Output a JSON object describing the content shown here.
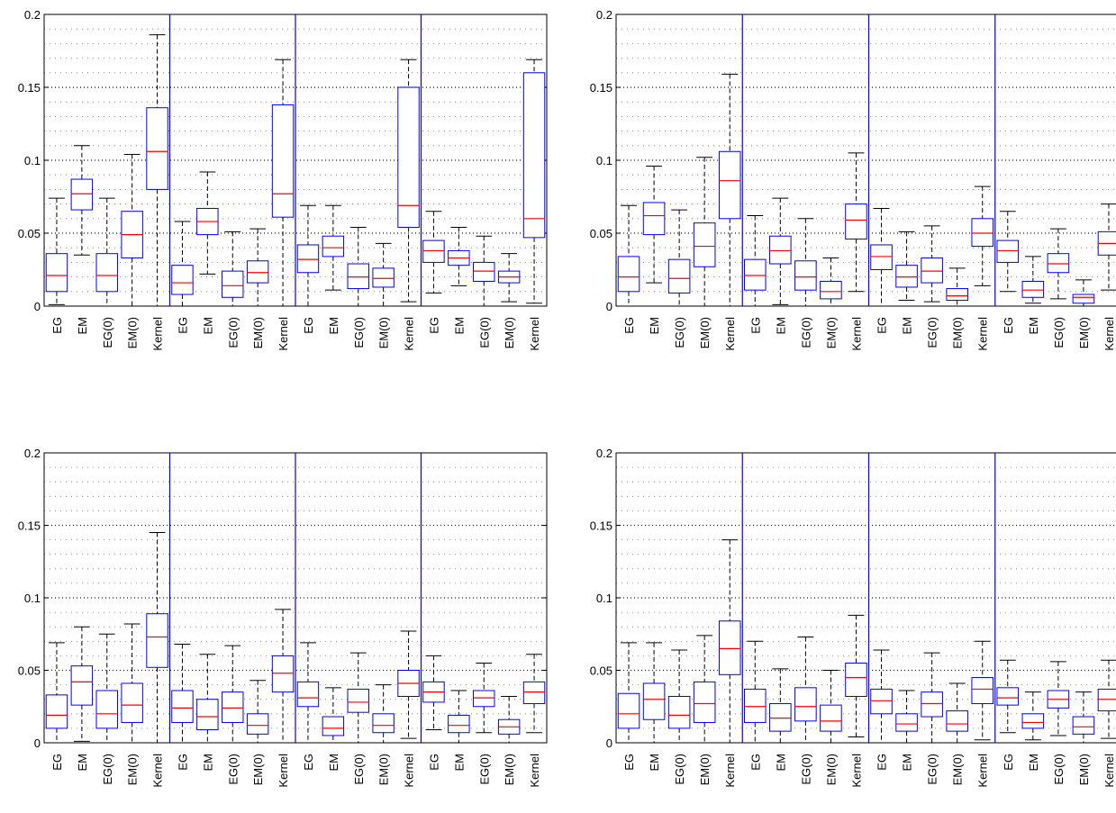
{
  "figure": {
    "layout": "2x2 grid of box plots"
  },
  "colors": {
    "box": "#0000ff",
    "median": "#ff0000",
    "whisker": "#000000",
    "grid": "#000000",
    "separator": "#0000ff"
  },
  "chart_data": [
    {
      "type": "box",
      "ylim": [
        0,
        0.2
      ],
      "yticks": [
        0,
        0.05,
        0.1,
        0.15,
        0.2
      ],
      "ytick_labels": [
        "0",
        "0.05",
        "0.1",
        "0.15",
        "0.2"
      ],
      "grid": "dotted",
      "groups": [
        {
          "categories": [
            "EG",
            "EM",
            "EG(0)",
            "EM(0)",
            "Kernel"
          ],
          "boxes": [
            [
              0.001,
              0.01,
              0.021,
              0.036,
              0.074
            ],
            [
              0.035,
              0.066,
              0.077,
              0.087,
              0.11
            ],
            [
              0.0,
              0.01,
              0.021,
              0.036,
              0.074
            ],
            [
              0.0,
              0.033,
              0.049,
              0.065,
              0.104
            ],
            [
              0.0,
              0.08,
              0.106,
              0.136,
              0.186
            ]
          ]
        },
        {
          "categories": [
            "EG",
            "EM",
            "EG(0)",
            "EM(0)",
            "Kernel"
          ],
          "boxes": [
            [
              0.0,
              0.008,
              0.016,
              0.028,
              0.058
            ],
            [
              0.022,
              0.049,
              0.058,
              0.067,
              0.092
            ],
            [
              0.0,
              0.006,
              0.014,
              0.024,
              0.051
            ],
            [
              0.0,
              0.016,
              0.023,
              0.031,
              0.053
            ],
            [
              0.0,
              0.061,
              0.077,
              0.138,
              0.169
            ]
          ]
        },
        {
          "categories": [
            "EG",
            "EM",
            "EG(0)",
            "EM(0)",
            "Kernel"
          ],
          "boxes": [
            [
              0.0,
              0.023,
              0.032,
              0.042,
              0.069
            ],
            [
              0.011,
              0.034,
              0.04,
              0.048,
              0.069
            ],
            [
              0.0,
              0.012,
              0.02,
              0.029,
              0.054
            ],
            [
              0.0,
              0.013,
              0.019,
              0.026,
              0.043
            ],
            [
              0.003,
              0.054,
              0.069,
              0.15,
              0.169
            ]
          ]
        },
        {
          "categories": [
            "EG",
            "EM",
            "EG(0)",
            "EM(0)",
            "Kernel"
          ],
          "boxes": [
            [
              0.009,
              0.03,
              0.038,
              0.045,
              0.065
            ],
            [
              0.014,
              0.028,
              0.033,
              0.038,
              0.054
            ],
            [
              0.0,
              0.017,
              0.024,
              0.03,
              0.048
            ],
            [
              0.003,
              0.016,
              0.02,
              0.024,
              0.036
            ],
            [
              0.002,
              0.047,
              0.06,
              0.16,
              0.169
            ]
          ]
        }
      ]
    },
    {
      "type": "box",
      "ylim": [
        0,
        0.2
      ],
      "yticks": [
        0,
        0.05,
        0.1,
        0.15,
        0.2
      ],
      "ytick_labels": [
        "0",
        "0.05",
        "0.1",
        "0.15",
        "0.2"
      ],
      "grid": "dotted",
      "groups": [
        {
          "categories": [
            "EG",
            "EM",
            "EG(0)",
            "EM(0)",
            "Kernel"
          ],
          "boxes": [
            [
              0.0,
              0.01,
              0.02,
              0.034,
              0.069
            ],
            [
              0.016,
              0.049,
              0.062,
              0.071,
              0.096
            ],
            [
              0.0,
              0.009,
              0.019,
              0.032,
              0.066
            ],
            [
              0.0,
              0.027,
              0.041,
              0.057,
              0.102
            ],
            [
              0.0,
              0.06,
              0.086,
              0.106,
              0.159
            ]
          ]
        },
        {
          "categories": [
            "EG",
            "EM",
            "EG(0)",
            "EM(0)",
            "Kernel"
          ],
          "boxes": [
            [
              0.0,
              0.011,
              0.021,
              0.032,
              0.062
            ],
            [
              0.001,
              0.029,
              0.038,
              0.048,
              0.074
            ],
            [
              0.0,
              0.011,
              0.02,
              0.031,
              0.06
            ],
            [
              0.0,
              0.005,
              0.01,
              0.017,
              0.033
            ],
            [
              0.01,
              0.046,
              0.059,
              0.07,
              0.105
            ]
          ]
        },
        {
          "categories": [
            "EG",
            "EM",
            "EG(0)",
            "EM(0)",
            "Kernel"
          ],
          "boxes": [
            [
              0.0,
              0.025,
              0.034,
              0.042,
              0.067
            ],
            [
              0.004,
              0.013,
              0.02,
              0.028,
              0.051
            ],
            [
              0.003,
              0.016,
              0.024,
              0.033,
              0.055
            ],
            [
              0.0,
              0.004,
              0.007,
              0.012,
              0.026
            ],
            [
              0.014,
              0.041,
              0.05,
              0.06,
              0.082
            ]
          ]
        },
        {
          "categories": [
            "EG",
            "EM",
            "EG(0)",
            "EM(0)",
            "Kernel"
          ],
          "boxes": [
            [
              0.01,
              0.03,
              0.038,
              0.045,
              0.065
            ],
            [
              0.002,
              0.006,
              0.011,
              0.017,
              0.034
            ],
            [
              0.005,
              0.023,
              0.029,
              0.036,
              0.053
            ],
            [
              0.0,
              0.002,
              0.006,
              0.008,
              0.018
            ],
            [
              0.011,
              0.035,
              0.043,
              0.051,
              0.07
            ]
          ]
        }
      ]
    },
    {
      "type": "box",
      "ylim": [
        0,
        0.2
      ],
      "yticks": [
        0,
        0.05,
        0.1,
        0.15,
        0.2
      ],
      "ytick_labels": [
        "0",
        "0.05",
        "0.1",
        "0.15",
        "0.2"
      ],
      "grid": "dotted",
      "groups": [
        {
          "categories": [
            "EG",
            "EM",
            "EG(0)",
            "EM(0)",
            "Kernel"
          ],
          "boxes": [
            [
              0.0,
              0.01,
              0.019,
              0.033,
              0.069
            ],
            [
              0.001,
              0.026,
              0.042,
              0.053,
              0.08
            ],
            [
              0.0,
              0.01,
              0.02,
              0.036,
              0.075
            ],
            [
              0.0,
              0.014,
              0.026,
              0.041,
              0.082
            ],
            [
              0.0,
              0.052,
              0.073,
              0.089,
              0.145
            ]
          ]
        },
        {
          "categories": [
            "EG",
            "EM",
            "EG(0)",
            "EM(0)",
            "Kernel"
          ],
          "boxes": [
            [
              0.0,
              0.014,
              0.024,
              0.036,
              0.068
            ],
            [
              0.0,
              0.009,
              0.018,
              0.03,
              0.061
            ],
            [
              0.0,
              0.014,
              0.024,
              0.035,
              0.067
            ],
            [
              0.0,
              0.006,
              0.012,
              0.02,
              0.043
            ],
            [
              0.0,
              0.035,
              0.048,
              0.06,
              0.092
            ]
          ]
        },
        {
          "categories": [
            "EG",
            "EM",
            "EG(0)",
            "EM(0)",
            "Kernel"
          ],
          "boxes": [
            [
              0.0,
              0.025,
              0.031,
              0.042,
              0.069
            ],
            [
              0.0,
              0.005,
              0.01,
              0.018,
              0.038
            ],
            [
              0.0,
              0.021,
              0.028,
              0.037,
              0.062
            ],
            [
              0.0,
              0.007,
              0.012,
              0.02,
              0.04
            ],
            [
              0.003,
              0.032,
              0.041,
              0.05,
              0.077
            ]
          ]
        },
        {
          "categories": [
            "EG",
            "EM",
            "EG(0)",
            "EM(0)",
            "Kernel"
          ],
          "boxes": [
            [
              0.009,
              0.028,
              0.035,
              0.042,
              0.06
            ],
            [
              0.0,
              0.007,
              0.012,
              0.019,
              0.036
            ],
            [
              0.007,
              0.025,
              0.031,
              0.036,
              0.055
            ],
            [
              0.0,
              0.006,
              0.011,
              0.016,
              0.032
            ],
            [
              0.007,
              0.027,
              0.035,
              0.042,
              0.061
            ]
          ]
        }
      ]
    },
    {
      "type": "box",
      "ylim": [
        0,
        0.2
      ],
      "yticks": [
        0,
        0.05,
        0.1,
        0.15,
        0.2
      ],
      "ytick_labels": [
        "0",
        "0.05",
        "0.1",
        "0.15",
        "0.2"
      ],
      "grid": "dotted",
      "groups": [
        {
          "categories": [
            "EG",
            "EM",
            "EG(0)",
            "EM(0)",
            "Kernel"
          ],
          "boxes": [
            [
              0.0,
              0.01,
              0.02,
              0.034,
              0.069
            ],
            [
              0.0,
              0.016,
              0.03,
              0.041,
              0.069
            ],
            [
              0.0,
              0.01,
              0.019,
              0.032,
              0.064
            ],
            [
              0.0,
              0.014,
              0.027,
              0.042,
              0.074
            ],
            [
              0.0,
              0.047,
              0.065,
              0.084,
              0.14
            ]
          ]
        },
        {
          "categories": [
            "EG",
            "EM",
            "EG(0)",
            "EM(0)",
            "Kernel"
          ],
          "boxes": [
            [
              0.0,
              0.014,
              0.025,
              0.037,
              0.07
            ],
            [
              0.0,
              0.008,
              0.017,
              0.027,
              0.051
            ],
            [
              0.0,
              0.015,
              0.025,
              0.038,
              0.073
            ],
            [
              0.0,
              0.008,
              0.015,
              0.026,
              0.05
            ],
            [
              0.004,
              0.032,
              0.045,
              0.055,
              0.088
            ]
          ]
        },
        {
          "categories": [
            "EG",
            "EM",
            "EG(0)",
            "EM(0)",
            "Kernel"
          ],
          "boxes": [
            [
              0.0,
              0.02,
              0.029,
              0.037,
              0.064
            ],
            [
              0.0,
              0.008,
              0.013,
              0.02,
              0.036
            ],
            [
              0.0,
              0.018,
              0.027,
              0.035,
              0.062
            ],
            [
              0.0,
              0.008,
              0.013,
              0.022,
              0.041
            ],
            [
              0.002,
              0.027,
              0.037,
              0.045,
              0.07
            ]
          ]
        },
        {
          "categories": [
            "EG",
            "EM",
            "EG(0)",
            "EM(0)",
            "Kernel"
          ],
          "boxes": [
            [
              0.007,
              0.026,
              0.031,
              0.038,
              0.057
            ],
            [
              0.002,
              0.01,
              0.014,
              0.02,
              0.035
            ],
            [
              0.005,
              0.024,
              0.03,
              0.036,
              0.056
            ],
            [
              0.0,
              0.006,
              0.011,
              0.018,
              0.035
            ],
            [
              0.003,
              0.022,
              0.03,
              0.037,
              0.057
            ]
          ]
        }
      ]
    }
  ]
}
